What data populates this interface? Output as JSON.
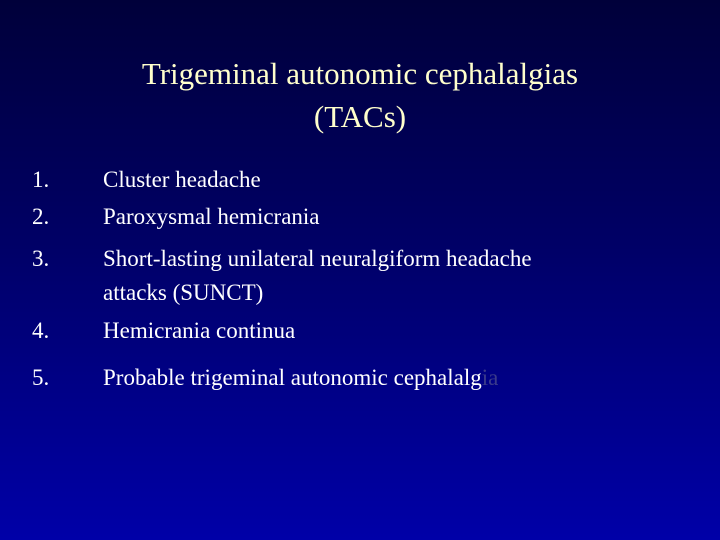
{
  "title": {
    "line1": "Trigeminal autonomic cephalalgias",
    "line2": "(TACs)"
  },
  "list": [
    {
      "number": "1.",
      "lines": [
        "Cluster headache"
      ]
    },
    {
      "number": "2.",
      "lines": [
        "Paroxysmal hemicrania"
      ]
    },
    {
      "number": "3.",
      "lines": [
        "Short-lasting unilateral neuralgiform headache",
        "attacks (SUNCT)"
      ]
    },
    {
      "number": "4.",
      "lines": [
        "Hemicrania continua"
      ]
    },
    {
      "number": "5.",
      "lines": [
        "Probable trigeminal autonomic cephalalg"
      ],
      "faded": "ia"
    }
  ]
}
